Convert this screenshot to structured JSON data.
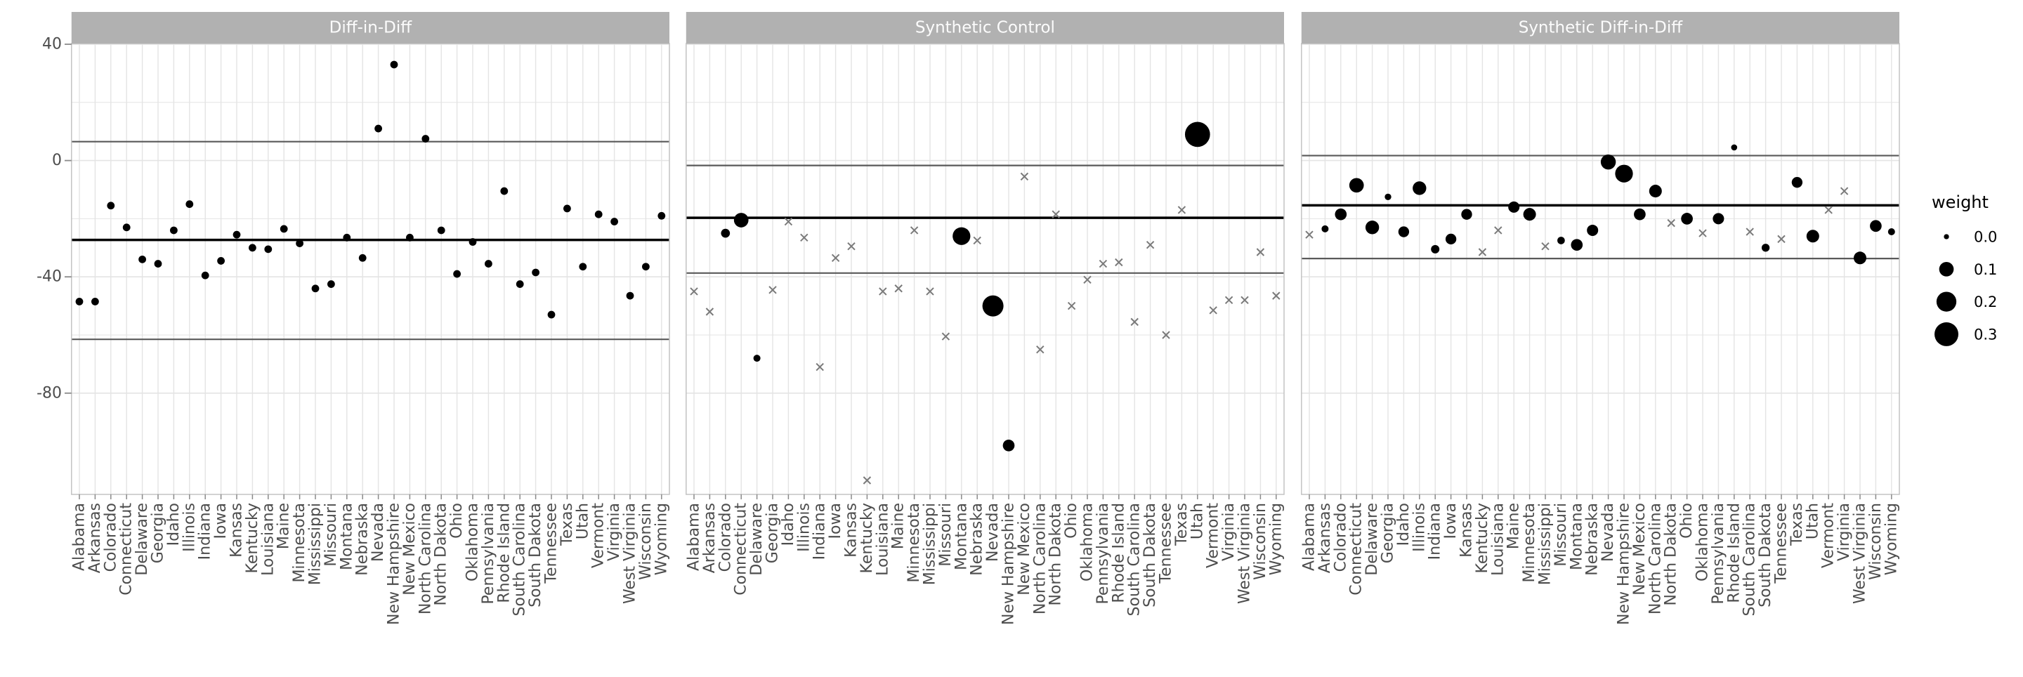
{
  "chart_data": {
    "type": "scatter",
    "description": "Placebo point estimates by state under three estimators with point size showing unit weight",
    "y_axis": {
      "ticks": [
        40,
        0,
        -40,
        -80
      ],
      "tick_labels": [
        "40",
        "0",
        "-40",
        "-80"
      ],
      "major_gridlines": [
        40,
        0,
        -40,
        -80
      ],
      "minor_gridlines": [
        20,
        -20,
        -60
      ],
      "ylim": [
        -115,
        40
      ],
      "grid": true
    },
    "legend": {
      "title": "weight",
      "position": "right",
      "entries": [
        {
          "label": "0.0",
          "weight": 0.0
        },
        {
          "label": "0.1",
          "weight": 0.1
        },
        {
          "label": "0.2",
          "weight": 0.2
        },
        {
          "label": "0.3",
          "weight": 0.3
        }
      ]
    },
    "states": [
      "Alabama",
      "Arkansas",
      "Colorado",
      "Connecticut",
      "Delaware",
      "Georgia",
      "Idaho",
      "Illinois",
      "Indiana",
      "Iowa",
      "Kansas",
      "Kentucky",
      "Louisiana",
      "Maine",
      "Minnesota",
      "Mississippi",
      "Missouri",
      "Montana",
      "Nebraska",
      "Nevada",
      "New Hampshire",
      "New Mexico",
      "North Carolina",
      "North Dakota",
      "Ohio",
      "Oklahoma",
      "Pennsylvania",
      "Rhode Island",
      "South Carolina",
      "South Dakota",
      "Tennessee",
      "Texas",
      "Utah",
      "Vermont",
      "Virginia",
      "West Virginia",
      "Wisconsin",
      "Wyoming"
    ],
    "panels": [
      {
        "title": "Diff-in-Diff",
        "estimate": -27.3,
        "ci_upper": 6.5,
        "ci_lower": -61.5,
        "values": [
          -48.5,
          -48.5,
          -15.5,
          -23,
          -34,
          -35.5,
          -24,
          -15,
          -39.5,
          -34.5,
          -25.5,
          -30,
          -30.5,
          -23.5,
          -28.5,
          -44,
          -42.5,
          -26.5,
          -33.5,
          11,
          33,
          -26.5,
          7.5,
          -24,
          -39,
          -28,
          -35.5,
          -10.5,
          -42.5,
          -38.5,
          -53,
          -16.5,
          -36.5,
          -18.5,
          -21,
          -46.5,
          -36.5,
          -19
        ],
        "weights": [
          0.026,
          0.026,
          0.026,
          0.026,
          0.026,
          0.026,
          0.026,
          0.026,
          0.026,
          0.026,
          0.026,
          0.026,
          0.026,
          0.026,
          0.026,
          0.026,
          0.026,
          0.026,
          0.026,
          0.026,
          0.026,
          0.026,
          0.026,
          0.026,
          0.026,
          0.026,
          0.026,
          0.026,
          0.026,
          0.026,
          0.026,
          0.026,
          0.026,
          0.026,
          0.026,
          0.026,
          0.026,
          0.026
        ],
        "marks": [
          "dot",
          "dot",
          "dot",
          "dot",
          "dot",
          "dot",
          "dot",
          "dot",
          "dot",
          "dot",
          "dot",
          "dot",
          "dot",
          "dot",
          "dot",
          "dot",
          "dot",
          "dot",
          "dot",
          "dot",
          "dot",
          "dot",
          "dot",
          "dot",
          "dot",
          "dot",
          "dot",
          "dot",
          "dot",
          "dot",
          "dot",
          "dot",
          "dot",
          "dot",
          "dot",
          "dot",
          "dot",
          "dot"
        ]
      },
      {
        "title": "Synthetic Control",
        "estimate": -19.7,
        "ci_upper": -1.7,
        "ci_lower": -38.7,
        "values": [
          -45,
          -52,
          -25,
          -20.5,
          -68,
          -44.5,
          -21,
          -26.5,
          -71,
          -33.5,
          -29.5,
          -110,
          -45,
          -44,
          -24,
          -45,
          -60.5,
          -26,
          -27.5,
          -50,
          -98,
          -5.5,
          -65,
          -18.5,
          -50,
          -41,
          -35.5,
          -35,
          -55.5,
          -29,
          -60,
          -17,
          9,
          -51.5,
          -48,
          -48,
          -31.5,
          -46.5
        ],
        "weights": [
          0,
          0,
          0.04,
          0.1,
          0.02,
          0,
          0,
          0,
          0,
          0,
          0,
          0,
          0,
          0,
          0,
          0,
          0,
          0.16,
          0,
          0.23,
          0.07,
          0,
          0,
          0,
          0,
          0,
          0,
          0,
          0,
          0,
          0,
          0,
          0.33,
          0,
          0,
          0,
          0,
          0
        ],
        "marks": [
          "x",
          "x",
          "dot",
          "dot",
          "dot",
          "x",
          "x",
          "x",
          "x",
          "x",
          "x",
          "x",
          "x",
          "x",
          "x",
          "x",
          "x",
          "dot",
          "x",
          "dot",
          "dot",
          "x",
          "x",
          "x",
          "x",
          "x",
          "x",
          "x",
          "x",
          "x",
          "x",
          "x",
          "dot",
          "x",
          "x",
          "x",
          "x",
          "x"
        ]
      },
      {
        "title": "Synthetic Diff-in-Diff",
        "estimate": -15.4,
        "ci_upper": 1.7,
        "ci_lower": -33.7,
        "values": [
          -25.5,
          -23.5,
          -18.5,
          -8.5,
          -23,
          -12.5,
          -24.5,
          -9.5,
          -30.5,
          -27,
          -18.5,
          -31.5,
          -24,
          -16,
          -18.5,
          -29.5,
          -27.5,
          -29,
          -24,
          -0.5,
          -4.5,
          -18.5,
          -10.5,
          -21.5,
          -20,
          -25,
          -20,
          4.5,
          -24.5,
          -30,
          -27,
          -7.5,
          -26,
          -17,
          -10.5,
          -33.5,
          -22.5,
          -24.5
        ],
        "weights": [
          0,
          0.02,
          0.07,
          0.1,
          0.09,
          0.015,
          0.06,
          0.09,
          0.035,
          0.06,
          0.06,
          0,
          0,
          0.065,
          0.08,
          0,
          0.025,
          0.07,
          0.065,
          0.11,
          0.16,
          0.07,
          0.08,
          0,
          0.07,
          0,
          0.065,
          0.01,
          0,
          0.03,
          0,
          0.06,
          0.08,
          0,
          0,
          0.08,
          0.07,
          0.02
        ],
        "marks": [
          "x",
          "dot",
          "dot",
          "dot",
          "dot",
          "dot",
          "dot",
          "dot",
          "dot",
          "dot",
          "dot",
          "x",
          "x",
          "dot",
          "dot",
          "x",
          "dot",
          "dot",
          "dot",
          "dot",
          "dot",
          "dot",
          "dot",
          "x",
          "dot",
          "x",
          "dot",
          "dot",
          "x",
          "dot",
          "x",
          "dot",
          "dot",
          "x",
          "x",
          "dot",
          "dot",
          "dot"
        ]
      }
    ],
    "colors": {
      "dot": "#000000",
      "x_mark": "#7a7a7a",
      "estimate_line": "#000000",
      "ci_line": "#595959",
      "strip_fill": "#b1b1b1",
      "strip_text": "#fcfcfc",
      "gridline": "#e4e4e4",
      "panel_border": "#c3c3c3",
      "axis_text": "#4d4d4d",
      "tick_mark": "#8a8a8a",
      "background": "#ffffff"
    }
  }
}
